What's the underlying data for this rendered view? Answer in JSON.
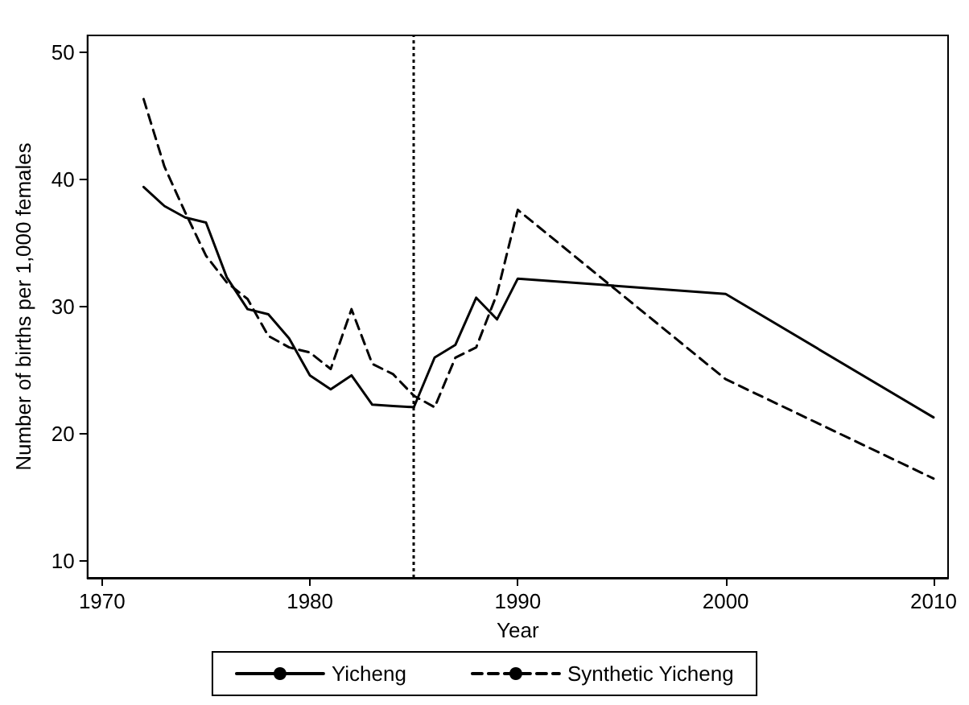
{
  "chart_data": {
    "type": "line",
    "xlabel": "Year",
    "ylabel": "Number of births per 1,000 females",
    "xlim": [
      1969.3,
      2010.7
    ],
    "ylim": [
      8.7,
      51.3
    ],
    "xticks": [
      1970,
      1980,
      1990,
      2000,
      2010
    ],
    "yticks": [
      10,
      20,
      30,
      40,
      50
    ],
    "grid": false,
    "legend": "bottom",
    "marker": "none",
    "series": [
      {
        "name": "Yicheng",
        "color": "#000000",
        "line_style": "solid",
        "x": [
          1972,
          1973,
          1974,
          1975,
          1976,
          1977,
          1978,
          1979,
          1980,
          1981,
          1982,
          1983,
          1984,
          1985,
          1986,
          1987,
          1988,
          1989,
          1990,
          2000,
          2010
        ],
        "values": [
          39.4,
          37.9,
          37.0,
          36.6,
          32.3,
          29.8,
          29.4,
          27.5,
          24.6,
          23.5,
          24.6,
          22.3,
          22.2,
          22.1,
          26.0,
          27.0,
          30.7,
          29.0,
          32.2,
          31.0,
          21.3
        ]
      },
      {
        "name": "Synthetic Yicheng",
        "color": "#000000",
        "line_style": "dashed",
        "x": [
          1972,
          1973,
          1974,
          1975,
          1976,
          1977,
          1978,
          1979,
          1980,
          1981,
          1982,
          1983,
          1984,
          1985,
          1986,
          1987,
          1988,
          1989,
          1990,
          2000,
          2010
        ],
        "values": [
          46.3,
          41.0,
          37.4,
          34.0,
          31.9,
          30.6,
          27.7,
          26.8,
          26.4,
          25.1,
          29.8,
          25.5,
          24.7,
          23.0,
          22.1,
          26.0,
          26.8,
          31.0,
          37.6,
          24.3,
          16.5
        ]
      }
    ],
    "ref_lines": [
      {
        "axis": "x",
        "value": 1985,
        "color": "#000000",
        "line_style": "dotted"
      }
    ]
  }
}
